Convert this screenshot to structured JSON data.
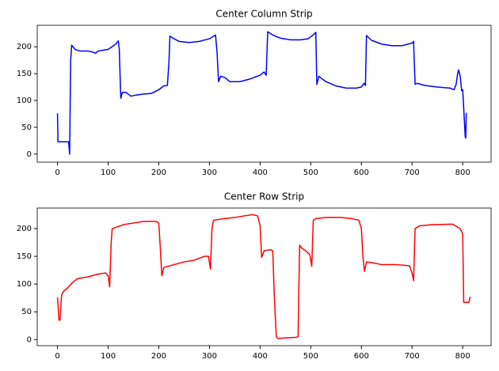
{
  "chart_data": [
    {
      "type": "line",
      "title": "Center Column Strip",
      "color": "#0000ff",
      "xlim": [
        -40,
        856
      ],
      "ylim": [
        -15,
        240
      ],
      "xticks": [
        0,
        100,
        200,
        300,
        400,
        500,
        600,
        700,
        800
      ],
      "yticks": [
        0,
        50,
        100,
        150,
        200
      ],
      "x": [
        0,
        1,
        20,
        22,
        24,
        26,
        28,
        35,
        45,
        60,
        70,
        75,
        80,
        100,
        115,
        120,
        122,
        125,
        128,
        135,
        145,
        155,
        170,
        185,
        200,
        210,
        217,
        220,
        222,
        230,
        240,
        260,
        280,
        300,
        312,
        315,
        318,
        322,
        330,
        340,
        360,
        380,
        400,
        408,
        412,
        415,
        425,
        440,
        460,
        480,
        495,
        505,
        510,
        512,
        516,
        530,
        550,
        570,
        590,
        600,
        605,
        608,
        610,
        620,
        640,
        660,
        680,
        700,
        703,
        706,
        710,
        725,
        750,
        775,
        783,
        787,
        790,
        792,
        795,
        798,
        800,
        802,
        805,
        806,
        807
      ],
      "values": [
        76,
        23,
        23,
        23,
        0,
        175,
        203,
        195,
        192,
        192,
        190,
        188,
        192,
        195,
        205,
        211,
        195,
        104,
        115,
        115,
        108,
        110,
        112,
        113,
        120,
        127,
        128,
        170,
        220,
        215,
        210,
        208,
        210,
        215,
        222,
        190,
        135,
        145,
        143,
        135,
        135,
        140,
        147,
        153,
        147,
        228,
        222,
        216,
        213,
        213,
        215,
        222,
        227,
        130,
        145,
        135,
        127,
        123,
        123,
        125,
        132,
        128,
        221,
        212,
        205,
        202,
        202,
        207,
        210,
        130,
        132,
        128,
        125,
        123,
        120,
        130,
        150,
        157,
        145,
        118,
        120,
        85,
        32,
        30,
        77
      ]
    },
    {
      "type": "line",
      "title": "Center Row Strip",
      "color": "#ff0000",
      "xlim": [
        -40,
        856
      ],
      "ylim": [
        -11,
        237
      ],
      "xticks": [
        0,
        100,
        200,
        300,
        400,
        500,
        600,
        700,
        800
      ],
      "yticks": [
        0,
        50,
        100,
        150,
        200
      ],
      "x": [
        0,
        3,
        5,
        8,
        12,
        20,
        30,
        40,
        60,
        80,
        95,
        100,
        103,
        106,
        108,
        115,
        130,
        150,
        170,
        195,
        200,
        203,
        206,
        210,
        230,
        250,
        270,
        290,
        298,
        302,
        305,
        308,
        330,
        350,
        370,
        385,
        395,
        400,
        403,
        408,
        420,
        425,
        428,
        432,
        435,
        450,
        470,
        475,
        478,
        482,
        490,
        498,
        502,
        505,
        510,
        530,
        560,
        580,
        595,
        600,
        603,
        606,
        610,
        625,
        640,
        670,
        695,
        700,
        703,
        706,
        715,
        740,
        780,
        795,
        800,
        802,
        812,
        815
      ],
      "values": [
        76,
        35,
        35,
        80,
        87,
        93,
        103,
        110,
        113,
        118,
        120,
        115,
        95,
        175,
        200,
        202,
        207,
        210,
        213,
        213,
        210,
        165,
        115,
        130,
        135,
        140,
        143,
        150,
        150,
        127,
        200,
        215,
        218,
        220,
        223,
        225,
        223,
        205,
        148,
        160,
        162,
        160,
        80,
        5,
        2,
        3,
        4,
        5,
        170,
        165,
        160,
        153,
        132,
        215,
        218,
        220,
        220,
        218,
        215,
        200,
        150,
        123,
        140,
        138,
        135,
        135,
        133,
        120,
        106,
        200,
        205,
        207,
        208,
        200,
        190,
        67,
        67,
        77
      ]
    }
  ]
}
